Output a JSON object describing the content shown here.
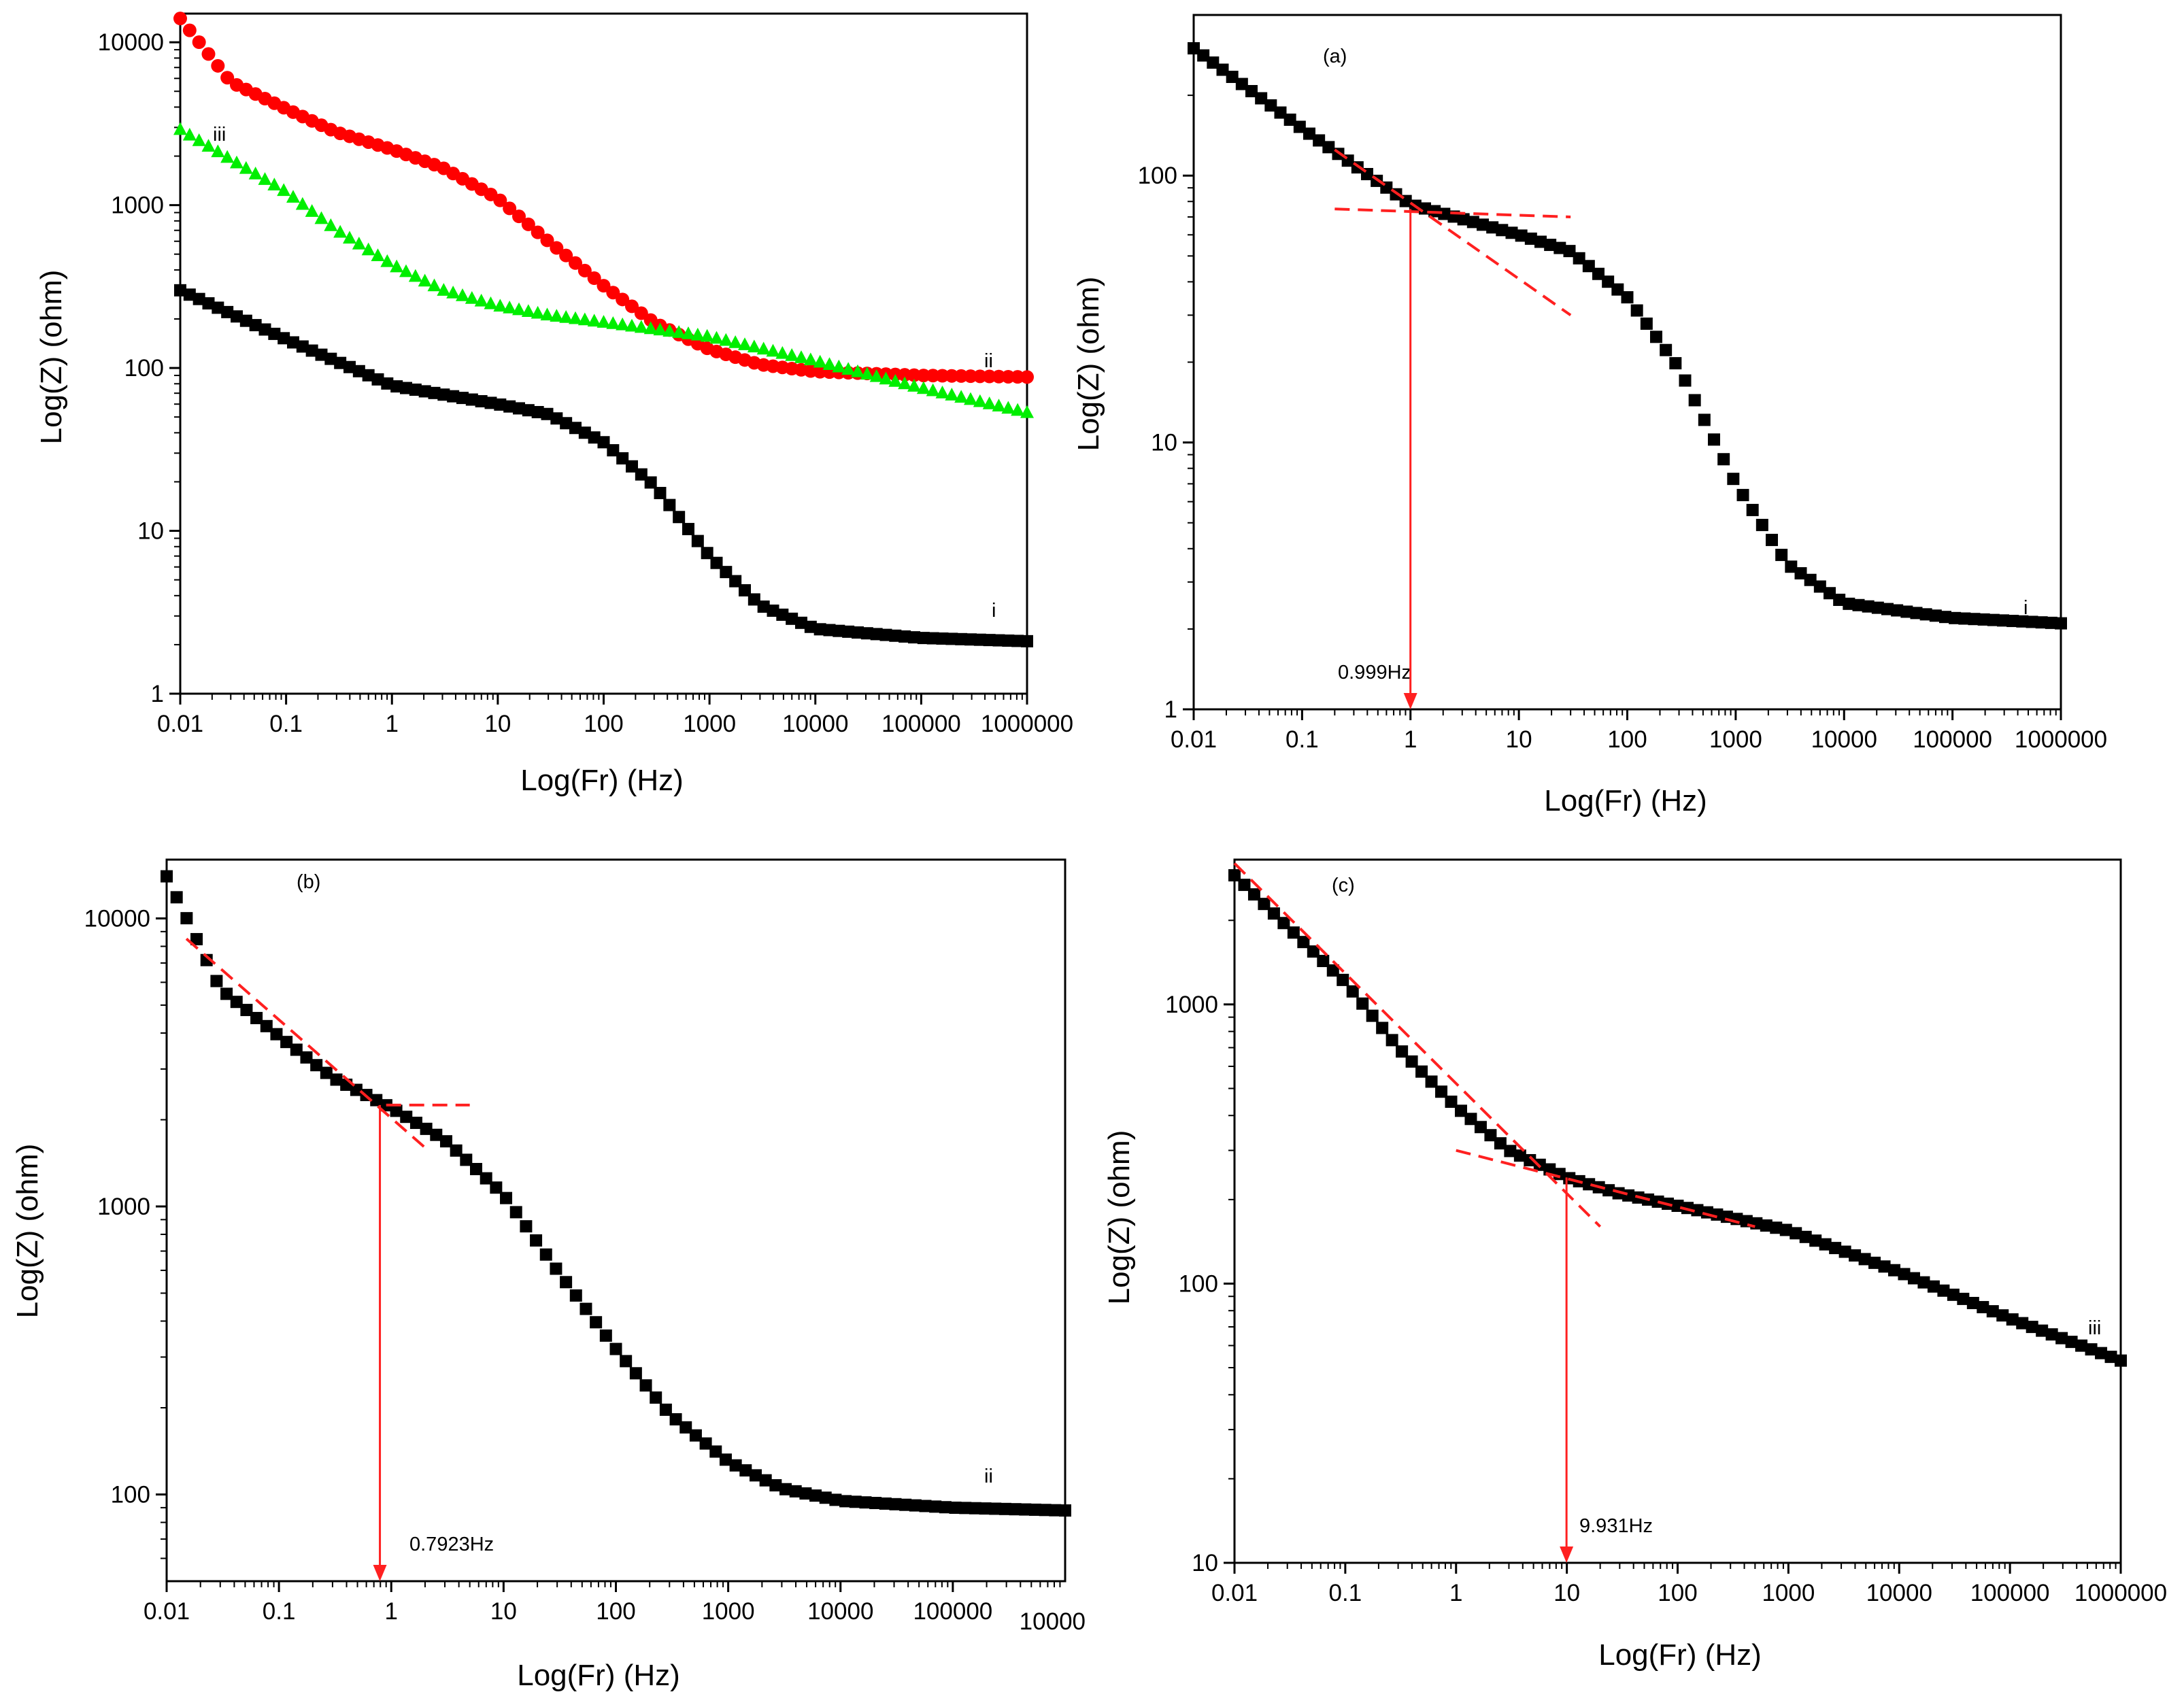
{
  "chart_data": [
    {
      "id": "overview",
      "type": "scatter",
      "xlabel": "Log(Fr) (Hz)",
      "ylabel": "Log(Z) (ohm)",
      "xscale": "log",
      "yscale": "log",
      "xlim": [
        0.01,
        1000000
      ],
      "ylim": [
        1,
        15000
      ],
      "xticks": [
        0.01,
        0.1,
        1,
        10,
        100,
        1000,
        10000,
        100000,
        1000000
      ],
      "xtick_labels": [
        "0.01",
        "0.1",
        "1",
        "10",
        "100",
        "1000",
        "10000",
        "100000",
        "1000000"
      ],
      "yticks": [
        1,
        10,
        100,
        1000,
        10000
      ],
      "ytick_labels": [
        "1",
        "10",
        "100",
        "1000",
        "10000"
      ],
      "panel_label": "",
      "series": [
        {
          "tag": "i",
          "color": "#000000",
          "marker": "square",
          "x": [
            0.01,
            0.1,
            1,
            10,
            30,
            100,
            300,
            1000,
            3000,
            10000,
            100000,
            1000000
          ],
          "y": [
            300,
            150,
            78,
            60,
            52,
            35,
            19,
            7,
            3.5,
            2.5,
            2.2,
            2.1
          ]
        },
        {
          "tag": "ii",
          "color": "#ff0000",
          "marker": "circle",
          "x": [
            0.01,
            0.03,
            0.1,
            0.3,
            1,
            3,
            10,
            30,
            100,
            300,
            1000,
            3000,
            10000,
            100000,
            1000000
          ],
          "y": [
            14000,
            5700,
            3900,
            2800,
            2200,
            1700,
            1100,
            600,
            320,
            190,
            130,
            105,
            95,
            90,
            88
          ]
        },
        {
          "tag": "iii",
          "color": "#00ee00",
          "marker": "triangle",
          "x": [
            0.01,
            0.03,
            0.1,
            0.3,
            1,
            3,
            10,
            30,
            100,
            1000,
            10000,
            100000,
            1000000
          ],
          "y": [
            2900,
            1900,
            1200,
            700,
            430,
            300,
            240,
            210,
            190,
            155,
            110,
            75,
            53
          ]
        }
      ],
      "annotations": []
    },
    {
      "id": "panel-a",
      "type": "scatter",
      "xlabel": "Log(Fr) (Hz)",
      "ylabel": "Log(Z) (ohm)",
      "xscale": "log",
      "yscale": "log",
      "xlim": [
        0.01,
        1000000
      ],
      "ylim": [
        1,
        400
      ],
      "xticks": [
        0.01,
        0.1,
        1,
        10,
        100,
        1000,
        10000,
        100000,
        1000000
      ],
      "xtick_labels": [
        "0.01",
        "0.1",
        "1",
        "10",
        "100",
        "1000",
        "10000",
        "100000",
        "1000000"
      ],
      "yticks": [
        1,
        10,
        100
      ],
      "ytick_labels": [
        "1",
        "10",
        "100"
      ],
      "panel_label": "(a)",
      "series": [
        {
          "tag": "i",
          "color": "#000000",
          "marker": "square",
          "x": [
            0.01,
            0.1,
            1,
            10,
            30,
            100,
            300,
            1000,
            3000,
            10000,
            100000,
            1000000
          ],
          "y": [
            300,
            150,
            78,
            60,
            52,
            35,
            19,
            7,
            3.5,
            2.5,
            2.2,
            2.1
          ]
        }
      ],
      "tangents": [
        {
          "x": [
            0.2,
            30
          ],
          "y": [
            75,
            70
          ]
        },
        {
          "x": [
            0.2,
            30
          ],
          "y": [
            125,
            30
          ]
        }
      ],
      "annotations": [
        {
          "x": 0.999,
          "text": "0.999Hz",
          "y_start": 75,
          "y_end": 1
        }
      ]
    },
    {
      "id": "panel-b",
      "type": "scatter",
      "xlabel": "Log(Fr) (Hz)",
      "ylabel": "Log(Z) (ohm)",
      "xscale": "log",
      "yscale": "log",
      "xlim": [
        0.01,
        1000000
      ],
      "ylim": [
        50,
        16000
      ],
      "xticks": [
        0.01,
        0.1,
        1,
        10,
        100,
        1000,
        10000,
        100000
      ],
      "xtick_labels": [
        "0.01",
        "0.1",
        "1",
        "10",
        "100",
        "1000",
        "10000",
        "100000"
      ],
      "edge_tick_label": "10000",
      "yticks": [
        100,
        1000,
        10000
      ],
      "ytick_labels": [
        "100",
        "1000",
        "10000"
      ],
      "panel_label": "(b)",
      "series": [
        {
          "tag": "ii",
          "color": "#000000",
          "marker": "square",
          "x": [
            0.01,
            0.03,
            0.1,
            0.3,
            1,
            3,
            10,
            30,
            100,
            300,
            1000,
            3000,
            10000,
            100000,
            1000000
          ],
          "y": [
            14000,
            5700,
            3900,
            2800,
            2200,
            1700,
            1100,
            600,
            320,
            190,
            130,
            105,
            95,
            90,
            88
          ]
        }
      ],
      "tangents": [
        {
          "x": [
            0.9,
            5
          ],
          "y": [
            2250,
            2250
          ]
        },
        {
          "x": [
            0.015,
            2
          ],
          "y": [
            8500,
            1600
          ]
        }
      ],
      "annotations": [
        {
          "x": 0.7923,
          "text": "0.7923Hz",
          "y_start": 2250,
          "y_end": 50
        }
      ]
    },
    {
      "id": "panel-c",
      "type": "scatter",
      "xlabel": "Log(Fr) (Hz)",
      "ylabel": "Log(Z) (ohm)",
      "xscale": "log",
      "yscale": "log",
      "xlim": [
        0.01,
        1000000
      ],
      "ylim": [
        10,
        3300
      ],
      "xticks": [
        0.01,
        0.1,
        1,
        10,
        100,
        1000,
        10000,
        100000,
        1000000
      ],
      "xtick_labels": [
        "0.01",
        "0.1",
        "1",
        "10",
        "100",
        "1000",
        "10000",
        "100000",
        "1000000"
      ],
      "yticks": [
        10,
        100,
        1000
      ],
      "ytick_labels": [
        "10",
        "100",
        "1000"
      ],
      "panel_label": "(c)",
      "series": [
        {
          "tag": "iii",
          "color": "#000000",
          "marker": "square",
          "x": [
            0.01,
            0.03,
            0.1,
            0.3,
            1,
            3,
            10,
            30,
            100,
            1000,
            10000,
            100000,
            1000000
          ],
          "y": [
            2900,
            1900,
            1200,
            700,
            430,
            300,
            240,
            210,
            190,
            155,
            110,
            75,
            53
          ]
        }
      ],
      "tangents": [
        {
          "x": [
            0.01,
            20
          ],
          "y": [
            3200,
            160
          ]
        },
        {
          "x": [
            1,
            500
          ],
          "y": [
            300,
            160
          ]
        }
      ],
      "annotations": [
        {
          "x": 9.931,
          "text": "9.931Hz",
          "y_start": 240,
          "y_end": 10
        }
      ]
    }
  ]
}
